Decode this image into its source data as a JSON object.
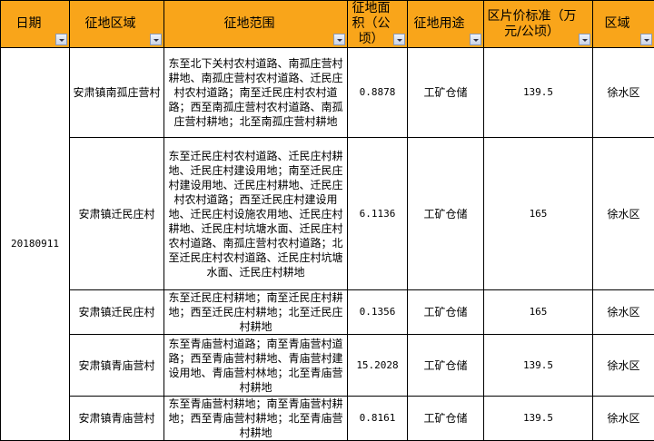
{
  "columns": [
    "日期",
    "征地区域",
    "征地范围",
    "征地面积（公顷）",
    "征地用途",
    "区片价标准（万元/公顷）",
    "区域"
  ],
  "date": "20180911",
  "rows": [
    {
      "area": "安肃镇南孤庄营村",
      "range": "东至北下关村农村道路、南孤庄营村耕地、南孤庄营村农村道路、迁民庄村农村道路；南至迁民庄村农村道路；西至南孤庄营村农村道路、南孤庄营村耕地；北至南孤庄营村耕地",
      "size": "0.8878",
      "use": "工矿仓储",
      "price": "139.5",
      "district": "徐水区"
    },
    {
      "area": "安肃镇迁民庄村",
      "range": "东至迁民庄村农村道路、迁民庄村耕地、迁民庄村建设用地；南至迁民庄村建设用地、迁民庄村耕地、迁民庄村农村道路；西至迁民庄村建设用地、迁民庄村设施农用地、迁民庄村耕地、迁民庄村坑塘水面、迁民庄村农村道路、南孤庄营村农村道路；北至迁民庄村农村道路、迁民庄村坑塘水面、迁民庄村耕地",
      "size": "6.1136",
      "use": "工矿仓储",
      "price": "165",
      "district": "徐水区"
    },
    {
      "area": "安肃镇迁民庄村",
      "range": "东至迁民庄村耕地；南至迁民庄村耕地；西至迁民庄村耕地；北至迁民庄村耕地",
      "size": "0.1356",
      "use": "工矿仓储",
      "price": "165",
      "district": "徐水区"
    },
    {
      "area": "安肃镇青庙营村",
      "range": "东至青庙营村道路；南至青庙营村道路；西至青庙营村耕地、青庙营村建设用地、青庙营村林地；北至青庙营村耕地",
      "size": "15.2028",
      "use": "工矿仓储",
      "price": "139.5",
      "district": "徐水区"
    },
    {
      "area": "安肃镇青庙营村",
      "range": "东至青庙营村耕地；南至青庙营村耕地；西至青庙营村耕地；北至青庙营村耕地",
      "size": "0.8161",
      "use": "工矿仓储",
      "price": "139.5",
      "district": "徐水区"
    }
  ]
}
